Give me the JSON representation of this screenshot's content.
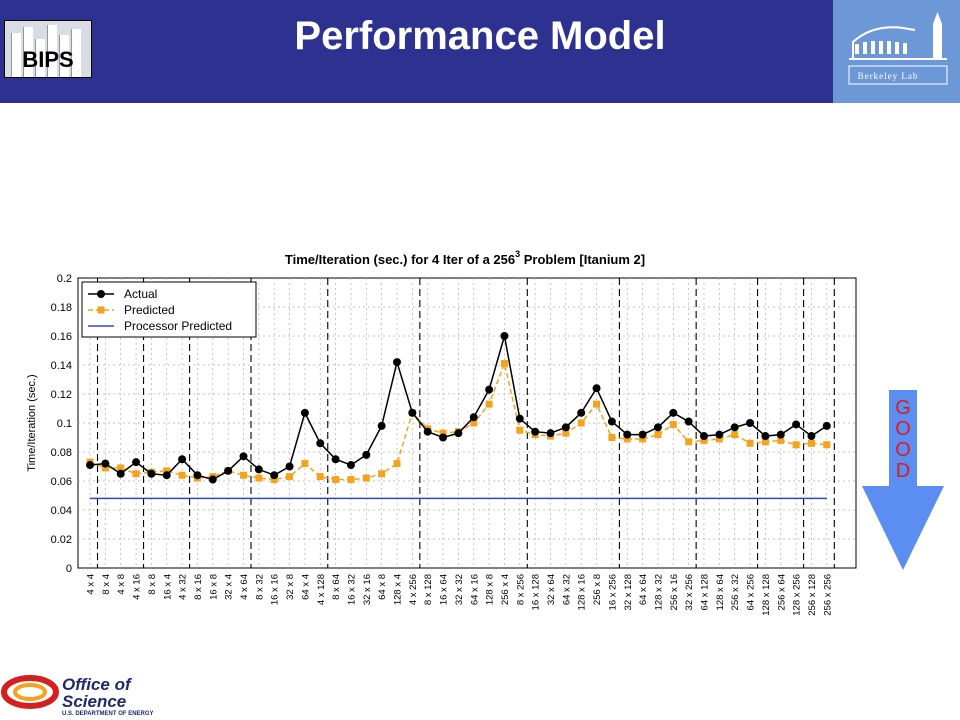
{
  "header": {
    "title": "Performance Model",
    "left_logo_text": "BIPS",
    "right_logo_text": "Berkeley Lab"
  },
  "footer": {
    "line1": "Office of",
    "line2": "Science",
    "line3": "U.S. DEPARTMENT OF ENERGY"
  },
  "annotation": {
    "letters": [
      "G",
      "O",
      "O",
      "D"
    ],
    "arrow_color": "#5b8ef0",
    "text_color": "#d4201e"
  },
  "colors": {
    "header_bg": "#2d3190",
    "actual": "#000000",
    "predicted": "#f5a21c",
    "processor": "#3048c8"
  },
  "chart_data": {
    "type": "line",
    "title_main": "Time/Iteration (sec.) for 4 Iter of a 256",
    "title_sup": "3",
    "title_tail": " Problem [Itanium 2]",
    "ylabel": "Time/Iteration (sec.)",
    "ylim": [
      0,
      0.2
    ],
    "yticks": [
      "0",
      "0.02",
      "0.04",
      "0.06",
      "0.08",
      "0.1",
      "0.12",
      "0.14",
      "0.16",
      "0.18",
      "0.2"
    ],
    "grid": true,
    "legend_position": "top-left",
    "categories": [
      "4 x 4",
      "8 x 4",
      "4 x 8",
      "4 x 16",
      "8 x 8",
      "16 x 4",
      "4 x 32",
      "8 x 16",
      "16 x 8",
      "32 x 4",
      "4 x 64",
      "8 x 32",
      "16 x 16",
      "32 x 8",
      "64 x 4",
      "4 x 128",
      "8 x 64",
      "16 x 32",
      "32 x 16",
      "64 x 8",
      "128 x 4",
      "4 x 256",
      "8 x 128",
      "16 x 64",
      "32 x 32",
      "64 x 16",
      "128 x 8",
      "256 x 4",
      "8 x 256",
      "16 x 128",
      "32 x 64",
      "64 x 32",
      "128 x 16",
      "256 x 8",
      "16 x 256",
      "32 x 128",
      "64 x 64",
      "128 x 32",
      "256 x 16",
      "32 x 256",
      "64 x 128",
      "128 x 64",
      "256 x 32",
      "64 x 256",
      "128 x 128",
      "256 x 64",
      "128 x 256",
      "256 x 128",
      "256 x 256"
    ],
    "group_starts": [
      0,
      3,
      6,
      10,
      15,
      21,
      28,
      34,
      39,
      43,
      46,
      48
    ],
    "series": [
      {
        "name": "Actual",
        "style": "solid-circle",
        "values": [
          0.071,
          0.072,
          0.065,
          0.073,
          0.065,
          0.064,
          0.075,
          0.064,
          0.061,
          0.067,
          0.077,
          0.068,
          0.064,
          0.07,
          0.107,
          0.086,
          0.075,
          0.071,
          0.078,
          0.098,
          0.142,
          0.107,
          0.094,
          0.09,
          0.093,
          0.104,
          0.123,
          0.16,
          0.103,
          0.094,
          0.093,
          0.097,
          0.107,
          0.124,
          0.101,
          0.092,
          0.092,
          0.097,
          0.107,
          0.101,
          0.091,
          0.092,
          0.097,
          0.1,
          0.091,
          0.092,
          0.099,
          0.091,
          0.098
        ]
      },
      {
        "name": "Predicted",
        "style": "dashed-square",
        "values": [
          0.073,
          0.069,
          0.069,
          0.065,
          0.066,
          0.067,
          0.064,
          0.062,
          0.063,
          0.067,
          0.064,
          0.062,
          0.061,
          0.063,
          0.072,
          0.063,
          0.061,
          0.061,
          0.062,
          0.065,
          0.072,
          0.107,
          0.096,
          0.093,
          0.094,
          0.1,
          0.113,
          0.141,
          0.095,
          0.092,
          0.091,
          0.093,
          0.1,
          0.113,
          0.09,
          0.089,
          0.089,
          0.092,
          0.099,
          0.087,
          0.088,
          0.089,
          0.092,
          0.086,
          0.087,
          0.088,
          0.085,
          0.086,
          0.085
        ]
      },
      {
        "name": "Processor Predicted",
        "style": "solid",
        "values": [
          0.048,
          0.048,
          0.048,
          0.048,
          0.048,
          0.048,
          0.048,
          0.048,
          0.048,
          0.048,
          0.048,
          0.048,
          0.048,
          0.048,
          0.048,
          0.048,
          0.048,
          0.048,
          0.048,
          0.048,
          0.048,
          0.048,
          0.048,
          0.048,
          0.048,
          0.048,
          0.048,
          0.048,
          0.048,
          0.048,
          0.048,
          0.048,
          0.048,
          0.048,
          0.048,
          0.048,
          0.048,
          0.048,
          0.048,
          0.048,
          0.048,
          0.048,
          0.048,
          0.048,
          0.048,
          0.048,
          0.048,
          0.048,
          0.048
        ]
      }
    ]
  }
}
